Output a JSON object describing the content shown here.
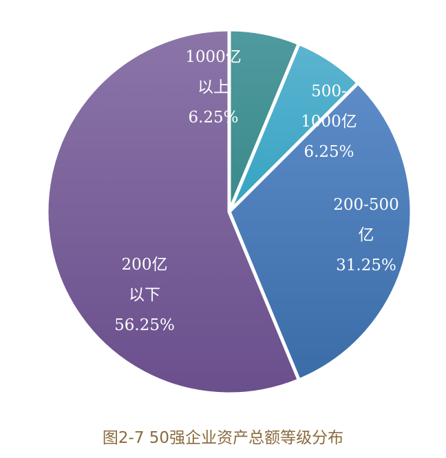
{
  "chart_data": {
    "type": "pie",
    "caption": "图2-7 50强企业资产总额等级分布",
    "slices": [
      {
        "label_lines": [
          "1000亿",
          "以上"
        ],
        "value": 6.25,
        "pct_text": "6.25%",
        "color_top": "#4f9a9e",
        "color_bottom": "#3a8a8a"
      },
      {
        "label_lines": [
          "500-",
          "1000亿"
        ],
        "value": 6.25,
        "pct_text": "6.25%",
        "color_top": "#5cb4d0",
        "color_bottom": "#35a3c2"
      },
      {
        "label_lines": [
          "200-500",
          "亿"
        ],
        "value": 31.25,
        "pct_text": "31.25%",
        "color_top": "#5d8cc8",
        "color_bottom": "#3a6ca8"
      },
      {
        "label_lines": [
          "200亿",
          "以下"
        ],
        "value": 56.25,
        "pct_text": "56.25%",
        "color_top": "#8b75a8",
        "color_bottom": "#6a4f8c"
      }
    ]
  }
}
